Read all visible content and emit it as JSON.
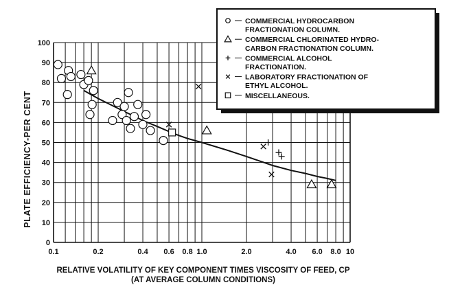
{
  "chart_data": {
    "type": "scatter",
    "title": "",
    "xlabel": "RELATIVE VOLATILITY OF KEY COMPONENT TIMES VISCOSITY OF FEED, CP",
    "xlabel2": "(AT AVERAGE COLUMN CONDITIONS)",
    "ylabel": "PLATE EFFICIENCY-PER CENT",
    "x_scale": "log",
    "xlim": [
      0.1,
      10
    ],
    "ylim": [
      0,
      100
    ],
    "x_tick_labels": [
      {
        "v": 0.1,
        "t": "0.1"
      },
      {
        "v": 0.2,
        "t": "0.2"
      },
      {
        "v": 0.4,
        "t": "0.4"
      },
      {
        "v": 0.6,
        "t": "0.6"
      },
      {
        "v": 0.8,
        "t": "0.8"
      },
      {
        "v": 1.0,
        "t": "1.0"
      },
      {
        "v": 2.0,
        "t": "2.0"
      },
      {
        "v": 4.0,
        "t": "4.0"
      },
      {
        "v": 6.0,
        "t": "6.0"
      },
      {
        "v": 8.0,
        "t": "8.0"
      },
      {
        "v": 10,
        "t": "10"
      }
    ],
    "x_grid": [
      0.1,
      0.12,
      0.14,
      0.16,
      0.18,
      0.2,
      0.3,
      0.4,
      0.5,
      0.6,
      0.7,
      0.8,
      0.9,
      1.0,
      2.0,
      3.0,
      4.0,
      5.0,
      6.0,
      7.0,
      8.0,
      9.0,
      10
    ],
    "y_ticks": [
      0,
      10,
      20,
      30,
      40,
      50,
      60,
      70,
      80,
      90,
      100
    ],
    "grid": true,
    "legend_position": "top-right",
    "legend": [
      {
        "marker": "circle",
        "lines": [
          "COMMERCIAL HYDROCARBON",
          "FRACTIONATION COLUMN."
        ]
      },
      {
        "marker": "triangle",
        "lines": [
          "COMMERCIAL CHLORINATED HYDRO-",
          "CARBON FRACTIONATION COLUMN."
        ]
      },
      {
        "marker": "plus",
        "lines": [
          "COMMERCIAL ALCOHOL",
          "FRACTIONATION."
        ]
      },
      {
        "marker": "cross",
        "lines": [
          "LABORATORY FRACTIONATION OF",
          "ETHYL ALCOHOL."
        ]
      },
      {
        "marker": "square",
        "lines": [
          "MISCELLANEOUS."
        ]
      }
    ],
    "series": [
      {
        "marker": "circle",
        "x": [
          0.107,
          0.113,
          0.124,
          0.126,
          0.131,
          0.153,
          0.16,
          0.172,
          0.176,
          0.182,
          0.186,
          0.25,
          0.27,
          0.29,
          0.3,
          0.31,
          0.32,
          0.33,
          0.35,
          0.37,
          0.4,
          0.42,
          0.45,
          0.55
        ],
        "y": [
          89,
          82,
          74,
          86,
          83,
          84,
          79,
          81,
          64,
          69,
          76,
          61,
          70,
          64,
          68,
          61,
          75,
          57,
          63,
          69,
          59,
          64,
          56,
          51
        ]
      },
      {
        "marker": "triangle",
        "x": [
          0.18,
          1.08,
          5.5,
          7.5
        ],
        "y": [
          86,
          56,
          29,
          29
        ]
      },
      {
        "marker": "plus",
        "x": [
          2.8,
          3.3,
          3.45
        ],
        "y": [
          50,
          45,
          43
        ]
      },
      {
        "marker": "cross",
        "x": [
          0.6,
          0.95,
          2.6,
          2.95
        ],
        "y": [
          59,
          78,
          48,
          34
        ]
      },
      {
        "marker": "square",
        "x": [
          0.63
        ],
        "y": [
          55
        ]
      }
    ],
    "curve": {
      "x": [
        0.16,
        0.2,
        0.3,
        0.4,
        0.5,
        0.6,
        0.7,
        0.8,
        1.0,
        1.5,
        2.0,
        3.0,
        4.0,
        5.0,
        6.0,
        7.0,
        8.0
      ],
      "y": [
        76,
        72,
        65.5,
        61,
        58,
        55.5,
        53.5,
        52,
        50,
        46,
        43,
        38.5,
        36,
        34.5,
        33,
        32,
        31
      ]
    }
  }
}
